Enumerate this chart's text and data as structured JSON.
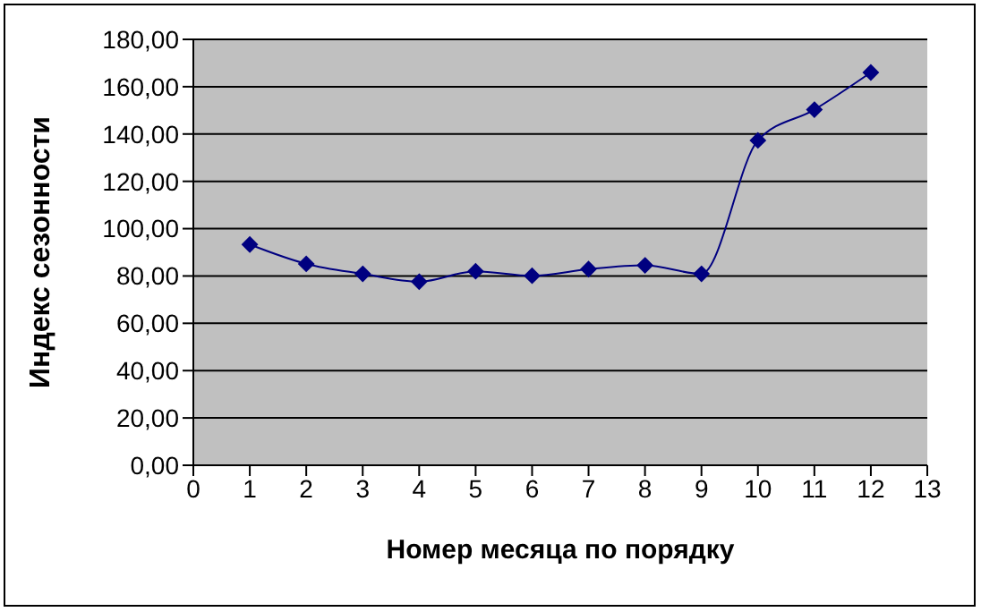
{
  "chart_data": {
    "type": "line",
    "xlabel": "Номер месяца по порядку",
    "ylabel": "Индекс сезонности",
    "x": [
      1,
      2,
      3,
      4,
      5,
      6,
      7,
      8,
      9,
      10,
      11,
      12
    ],
    "series": [
      {
        "color": "#000080",
        "values": [
          93.3,
          85.1,
          80.9,
          77.6,
          82.0,
          80.1,
          82.9,
          84.5,
          80.9,
          137.3,
          150.3,
          166.0
        ]
      }
    ],
    "xlim": [
      0,
      13
    ],
    "xticks": [
      0,
      1,
      2,
      3,
      4,
      5,
      6,
      7,
      8,
      9,
      10,
      11,
      12,
      13
    ],
    "ylim": [
      0,
      180
    ],
    "yticks": [
      {
        "value": 0,
        "label": "0,00"
      },
      {
        "value": 20,
        "label": "20,00"
      },
      {
        "value": 40,
        "label": "40,00"
      },
      {
        "value": 60,
        "label": "60,00"
      },
      {
        "value": 80,
        "label": "80,00"
      },
      {
        "value": 100,
        "label": "100,00"
      },
      {
        "value": 120,
        "label": "120,00"
      },
      {
        "value": 140,
        "label": "140,00"
      },
      {
        "value": 160,
        "label": "160,00"
      },
      {
        "value": 180,
        "label": "180,00"
      }
    ],
    "grid": "y",
    "legend": false,
    "marker": "diamond",
    "line_style": "solid"
  }
}
